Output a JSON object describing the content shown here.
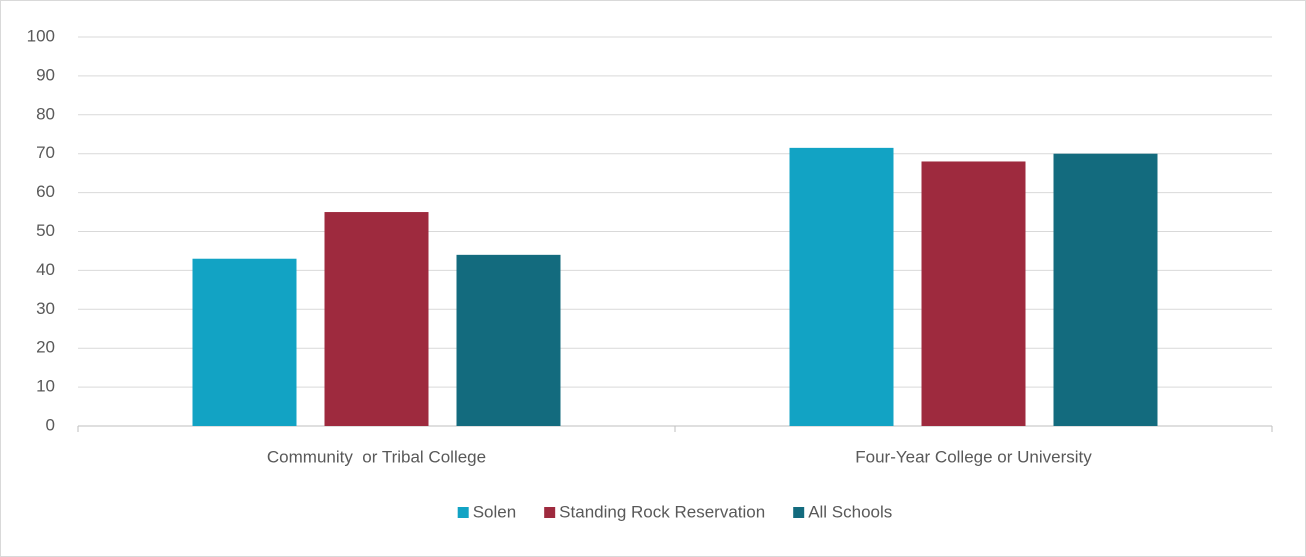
{
  "chart_data": {
    "type": "bar",
    "categories": [
      "Community  or Tribal College",
      "Four-Year College or University"
    ],
    "series": [
      {
        "name": "Solen",
        "color": "#12a3c4",
        "values": [
          43,
          71.5
        ]
      },
      {
        "name": "Standing Rock Reservation",
        "color": "#9e2a3e",
        "values": [
          55,
          68
        ]
      },
      {
        "name": "All Schools",
        "color": "#136b7e",
        "values": [
          44,
          70
        ]
      }
    ],
    "ylim": [
      0,
      100
    ],
    "yticks": [
      0,
      10,
      20,
      30,
      40,
      50,
      60,
      70,
      80,
      90,
      100
    ],
    "grid": true,
    "legend": "bottom"
  }
}
